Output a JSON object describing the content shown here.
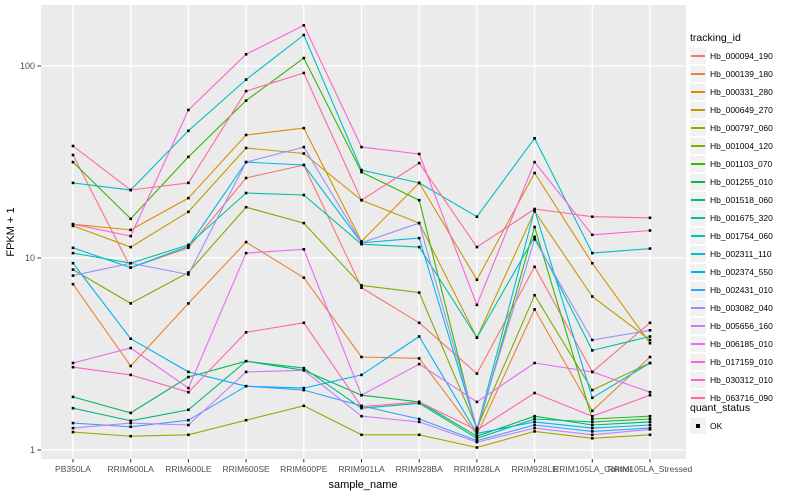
{
  "chart_data": {
    "type": "line",
    "title": "",
    "xlabel": "sample_name",
    "ylabel": "FPKM + 1",
    "y_scale": "log10",
    "ylim": [
      0.9,
      210
    ],
    "y_ticks": [
      1,
      10,
      100
    ],
    "y_tick_labels": [
      "1",
      "10",
      "100"
    ],
    "y_minor_ticks": [
      3.1623,
      31.623
    ],
    "grid": true,
    "legend_position": "right",
    "marker": {
      "shape": "square",
      "color": "#000000",
      "size": 2.6
    },
    "categories": [
      "PB350LA",
      "RRIM600LA",
      "RRIM600LE",
      "RRIM600SE",
      "RRIM600PE",
      "RRIM901LA",
      "RRIM928BA",
      "RRIM928LA",
      "RRIM928LE",
      "RRIM105LA_Control",
      "RRIM105LA_Stressed"
    ],
    "series": [
      {
        "name": "Hb_000094_190",
        "color": "#F8766D",
        "values": [
          34.4,
          8.9,
          11.3,
          26.1,
          30.5,
          7.0,
          4.6,
          2.5,
          9.0,
          2.55,
          4.6
        ]
      },
      {
        "name": "Hb_000139_180",
        "color": "#EA8331",
        "values": [
          7.3,
          2.74,
          5.8,
          12.1,
          7.9,
          3.05,
          3.0,
          1.2,
          5.4,
          1.6,
          3.05
        ]
      },
      {
        "name": "Hb_000331_280",
        "color": "#D89000",
        "values": [
          15.0,
          14.0,
          20.5,
          43.7,
          47.5,
          12.2,
          24.6,
          7.7,
          27.7,
          9.4,
          3.6
        ]
      },
      {
        "name": "Hb_000649_270",
        "color": "#C09B00",
        "values": [
          14.7,
          11.4,
          17.4,
          37.4,
          35.0,
          20.0,
          15.2,
          3.85,
          17.5,
          6.3,
          3.74
        ]
      },
      {
        "name": "Hb_000797_060",
        "color": "#A3A500",
        "values": [
          1.24,
          1.18,
          1.2,
          1.43,
          1.7,
          1.2,
          1.2,
          1.03,
          1.25,
          1.15,
          1.2
        ]
      },
      {
        "name": "Hb_001004_120",
        "color": "#7CAE00",
        "values": [
          8.7,
          5.8,
          8.4,
          18.4,
          15.2,
          7.2,
          6.6,
          1.3,
          6.4,
          2.05,
          2.84
        ]
      },
      {
        "name": "Hb_001103_070",
        "color": "#39B600",
        "values": [
          31.6,
          16.0,
          33.6,
          66.0,
          110.0,
          28.0,
          20.0,
          1.25,
          14.5,
          1.45,
          1.5
        ]
      },
      {
        "name": "Hb_001255_010",
        "color": "#00BB4E",
        "values": [
          1.89,
          1.56,
          2.4,
          2.9,
          2.6,
          1.93,
          1.78,
          1.18,
          1.5,
          1.35,
          1.4
        ]
      },
      {
        "name": "Hb_001518_060",
        "color": "#00BF7D",
        "values": [
          1.65,
          1.42,
          1.62,
          2.9,
          2.67,
          1.65,
          1.75,
          1.15,
          1.45,
          1.4,
          1.45
        ]
      },
      {
        "name": "Hb_001675_320",
        "color": "#00C1A3",
        "values": [
          10.6,
          9.4,
          11.7,
          21.8,
          21.3,
          11.8,
          11.4,
          3.85,
          12.9,
          3.3,
          3.9
        ]
      },
      {
        "name": "Hb_001754_060",
        "color": "#00BFC4",
        "values": [
          24.6,
          22.6,
          46.0,
          85.0,
          145.0,
          28.7,
          24.6,
          16.4,
          42.0,
          10.6,
          11.2
        ]
      },
      {
        "name": "Hb_002311_110",
        "color": "#00BAE0",
        "values": [
          11.3,
          8.9,
          11.5,
          31.6,
          30.5,
          12.0,
          12.7,
          1.28,
          17.8,
          1.87,
          2.84
        ]
      },
      {
        "name": "Hb_002374_550",
        "color": "#00B0F6",
        "values": [
          9.4,
          3.8,
          2.55,
          2.15,
          2.1,
          2.46,
          3.9,
          1.22,
          1.4,
          1.3,
          1.35
        ]
      },
      {
        "name": "Hb_002431_010",
        "color": "#35A2FF",
        "values": [
          1.38,
          1.32,
          1.43,
          2.15,
          2.05,
          1.7,
          1.45,
          1.12,
          1.35,
          1.25,
          1.3
        ]
      },
      {
        "name": "Hb_003082_040",
        "color": "#9590FF",
        "values": [
          8.1,
          9.4,
          8.2,
          31.6,
          37.8,
          12.0,
          15.2,
          1.3,
          12.5,
          3.74,
          4.2
        ]
      },
      {
        "name": "Hb_005656_160",
        "color": "#C77CFF",
        "values": [
          1.3,
          1.38,
          1.35,
          2.55,
          2.6,
          1.5,
          1.4,
          1.1,
          1.3,
          1.2,
          1.28
        ]
      },
      {
        "name": "Hb_006185_010",
        "color": "#E76BF3",
        "values": [
          2.84,
          3.4,
          2.1,
          10.6,
          11.1,
          1.93,
          2.8,
          1.78,
          2.84,
          2.55,
          2.0
        ]
      },
      {
        "name": "Hb_017159_010",
        "color": "#FA62DB",
        "values": [
          15.0,
          13.0,
          59.0,
          115.0,
          163.0,
          37.8,
          34.8,
          5.7,
          31.6,
          13.2,
          13.9
        ]
      },
      {
        "name": "Hb_030312_010",
        "color": "#FF62BC",
        "values": [
          2.7,
          2.46,
          2.0,
          4.1,
          4.6,
          1.68,
          1.78,
          1.27,
          1.98,
          1.5,
          1.93
        ]
      },
      {
        "name": "Hb_063716_090",
        "color": "#FF6A98",
        "values": [
          38.3,
          22.6,
          24.6,
          74.0,
          92.0,
          20.0,
          31.2,
          11.4,
          18.0,
          16.4,
          16.2
        ]
      }
    ]
  },
  "legend": {
    "title": "tracking_id"
  },
  "legend2": {
    "title": "quant_status",
    "items": [
      {
        "label": "OK",
        "marker": "black-square"
      }
    ]
  },
  "style": {
    "panel_bg": "#EBEBEB",
    "grid_major": "#FFFFFF",
    "grid_minor": "#F5F5F5",
    "tick_mark": "#333333",
    "tick_label": "#4D4D4D",
    "key_bg": "#F2F2F2",
    "point_color": "#000000"
  }
}
